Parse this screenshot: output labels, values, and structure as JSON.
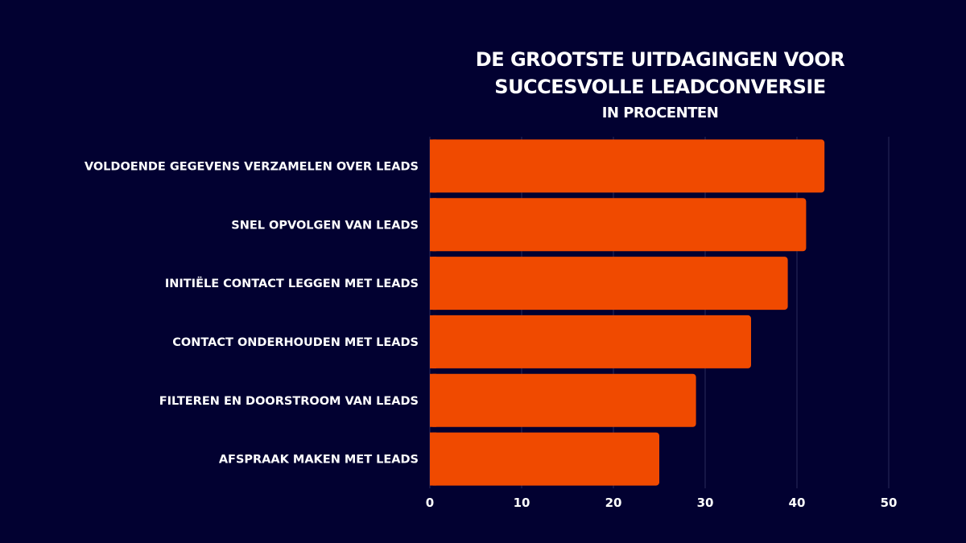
{
  "chart_data": {
    "type": "bar",
    "orientation": "horizontal",
    "title": "DE GROOTSTE UITDAGINGEN VOOR",
    "title_line2": "SUCCESVOLLE LEADCONVERSIE",
    "subtitle": "IN PROCENTEN",
    "categories": [
      "VOLDOENDE GEGEVENS VERZAMELEN OVER LEADS",
      "SNEL OPVOLGEN VAN LEADS",
      "INITIËLE CONTACT LEGGEN MET LEADS",
      "CONTACT ONDERHOUDEN MET LEADS",
      "FILTEREN EN DOORSTROOM VAN LEADS",
      "AFSPRAAK MAKEN MET LEADS"
    ],
    "values": [
      43,
      41,
      39,
      35,
      29,
      25
    ],
    "xlim": [
      0,
      50
    ],
    "xticks": [
      "0",
      "10",
      "20",
      "30",
      "40",
      "50"
    ],
    "grid": true,
    "colors": {
      "background": "#020131",
      "bar": "#F04A00",
      "grid": "#2A2A5A",
      "text": "#FFFFFF"
    }
  }
}
